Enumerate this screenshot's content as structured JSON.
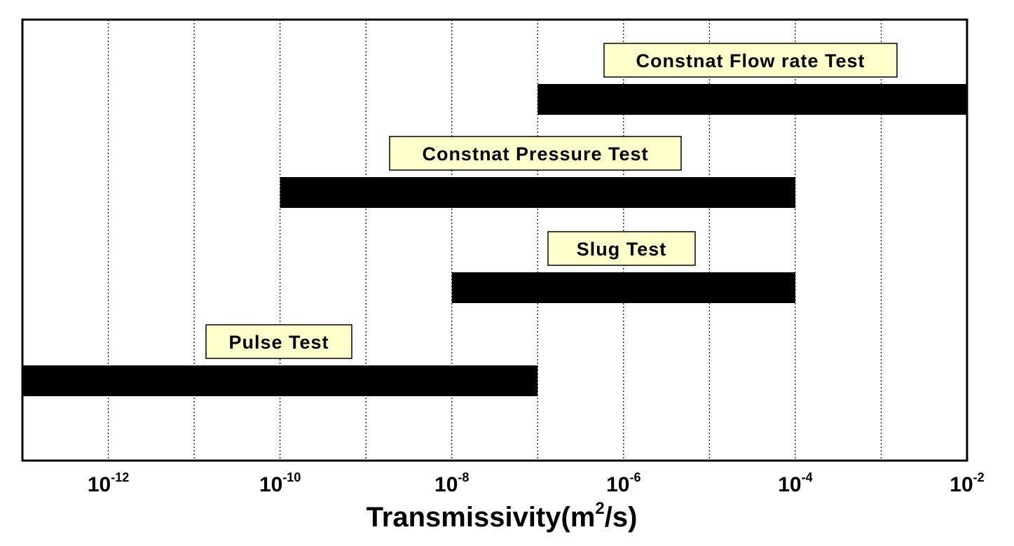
{
  "chart_data": {
    "type": "bar",
    "orientation": "horizontal-range",
    "x_scale": "log",
    "xlim": [
      1e-13,
      0.01
    ],
    "gridlines_at": [
      1e-12,
      1e-11,
      1e-10,
      1e-09,
      1e-08,
      1e-07,
      1e-06,
      1e-05,
      0.0001,
      0.001
    ],
    "grid": "vertical dotted",
    "xlabel": {
      "base": "Transmissivity(m",
      "exp": "2",
      "tail": "/s)"
    },
    "ticks": [
      {
        "value": 1e-12,
        "base": "10",
        "exp": "-12"
      },
      {
        "value": 1e-10,
        "base": "10",
        "exp": "-10"
      },
      {
        "value": 1e-08,
        "base": "10",
        "exp": "-8"
      },
      {
        "value": 1e-06,
        "base": "10",
        "exp": "-6"
      },
      {
        "value": 0.0001,
        "base": "10",
        "exp": "-4"
      },
      {
        "value": 0.01,
        "base": "10",
        "exp": "-2"
      }
    ],
    "series": [
      {
        "name": "Constnat Flow rate Test",
        "range": [
          1e-07,
          0.01
        ]
      },
      {
        "name": "Constnat Pressure Test",
        "range": [
          1e-10,
          0.0001
        ]
      },
      {
        "name": "Slug Test",
        "range": [
          1e-08,
          0.0001
        ]
      },
      {
        "name": "Pulse Test",
        "range": [
          1e-13,
          1e-07
        ]
      }
    ],
    "bar_color": "#000000",
    "label_box_color": "#ffffcc"
  }
}
